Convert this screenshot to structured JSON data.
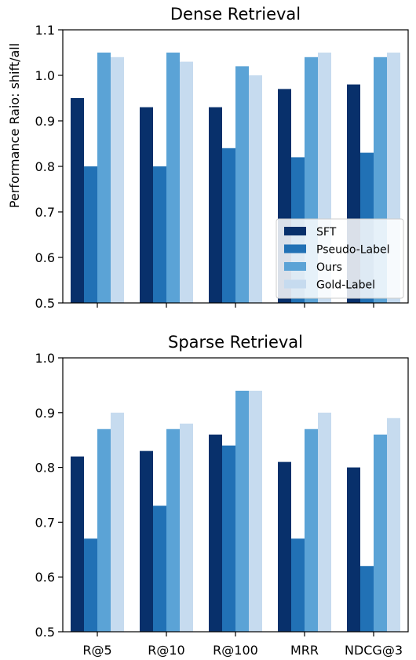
{
  "chart_data": [
    {
      "type": "bar",
      "title": "Dense Retrieval",
      "xlabel": "",
      "ylabel": "Performance Raio: shift/all",
      "ylim": [
        0.5,
        1.1
      ],
      "yticks": [
        "0.5",
        "0.6",
        "0.7",
        "0.8",
        "0.9",
        "1.0",
        "1.1"
      ],
      "categories": [
        "R@5",
        "R@10",
        "R@100",
        "MRR",
        "NDCG@3"
      ],
      "show_xtick_labels": false,
      "legend": "lower-right",
      "grid": false,
      "series": [
        {
          "name": "SFT",
          "color": "#08306b",
          "values": [
            0.95,
            0.93,
            0.93,
            0.97,
            0.98
          ]
        },
        {
          "name": "Pseudo-Label",
          "color": "#2171b5",
          "values": [
            0.8,
            0.8,
            0.84,
            0.82,
            0.83
          ]
        },
        {
          "name": "Ours",
          "color": "#5ba3d6",
          "values": [
            1.05,
            1.05,
            1.02,
            1.04,
            1.04
          ]
        },
        {
          "name": "Gold-Label",
          "color": "#c6dbef",
          "values": [
            1.04,
            1.03,
            1.0,
            1.05,
            1.05
          ]
        }
      ]
    },
    {
      "type": "bar",
      "title": "Sparse Retrieval",
      "xlabel": "",
      "ylabel": "",
      "ylim": [
        0.5,
        1.0
      ],
      "yticks": [
        "0.5",
        "0.6",
        "0.7",
        "0.8",
        "0.9",
        "1.0"
      ],
      "categories": [
        "R@5",
        "R@10",
        "R@100",
        "MRR",
        "NDCG@3"
      ],
      "show_xtick_labels": true,
      "legend": "none",
      "grid": false,
      "series": [
        {
          "name": "SFT",
          "color": "#08306b",
          "values": [
            0.82,
            0.83,
            0.86,
            0.81,
            0.8
          ]
        },
        {
          "name": "Pseudo-Label",
          "color": "#2171b5",
          "values": [
            0.67,
            0.73,
            0.84,
            0.67,
            0.62
          ]
        },
        {
          "name": "Ours",
          "color": "#5ba3d6",
          "values": [
            0.87,
            0.87,
            0.94,
            0.87,
            0.86
          ]
        },
        {
          "name": "Gold-Label",
          "color": "#c6dbef",
          "values": [
            0.9,
            0.88,
            0.94,
            0.9,
            0.89
          ]
        }
      ]
    }
  ]
}
